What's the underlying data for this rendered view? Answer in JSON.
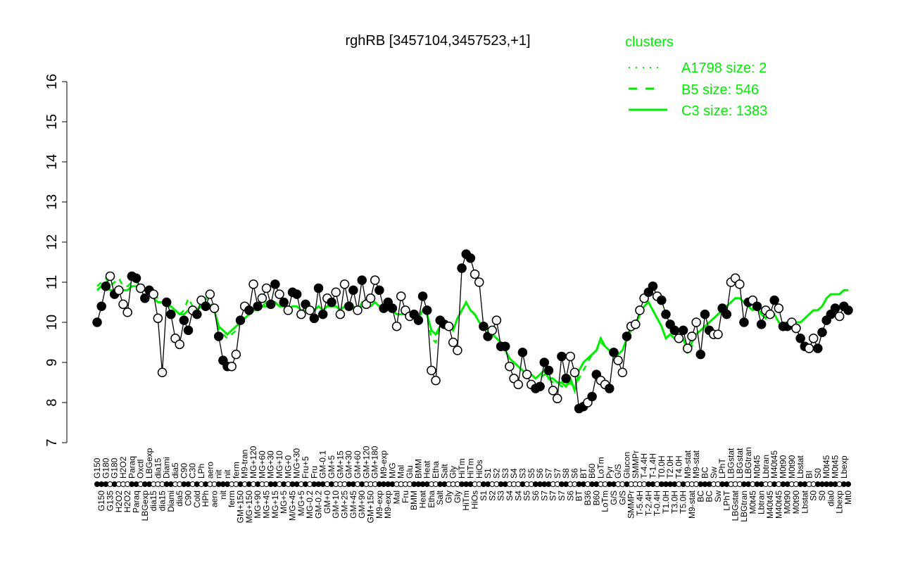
{
  "chart_data": {
    "type": "line",
    "title": "rghRB [3457104,3457523,+1]",
    "xlabel": "",
    "ylabel": "",
    "ylim": [
      7,
      16
    ],
    "yticks": [
      "7",
      "8",
      "9",
      "10",
      "11",
      "12",
      "13",
      "14",
      "15",
      "16"
    ],
    "grid": false,
    "legend": {
      "title": "clusters",
      "placement": "top-right",
      "entries": [
        {
          "name": "A1798 size: 2",
          "style": "dotted"
        },
        {
          "name": "B5 size: 546",
          "style": "dashed"
        },
        {
          "name": "C3 size: 1383",
          "style": "solid"
        }
      ]
    },
    "colors": {
      "cluster": "#00ee00",
      "points": "#000000"
    },
    "point_fields": [
      "label",
      "value",
      "filled",
      "C3",
      "B5"
    ],
    "points": [
      [
        "G150",
        10.0,
        1,
        10.8,
        10.9
      ],
      [
        "G150",
        10.4,
        1,
        10.9,
        11.0
      ],
      [
        "G180",
        10.9,
        1,
        10.9,
        11.1
      ],
      [
        "G135",
        11.15,
        0,
        10.8,
        10.9
      ],
      [
        "G180",
        10.7,
        1,
        10.8,
        11.0
      ],
      [
        "H2O2",
        10.8,
        0,
        10.9,
        11.1
      ],
      [
        "H2O2",
        10.45,
        0,
        10.8,
        10.9
      ],
      [
        "H2O2",
        10.25,
        0,
        10.8,
        10.9
      ],
      [
        "Paraq",
        11.15,
        1,
        10.9,
        11.0
      ],
      [
        "Paraq",
        11.1,
        1,
        10.9,
        11.0
      ],
      [
        "Oxctl",
        10.85,
        0,
        10.8,
        10.9
      ],
      [
        "LBGexp",
        10.6,
        1,
        10.8,
        10.8
      ],
      [
        "LBGexp",
        10.8,
        1,
        10.8,
        10.8
      ],
      [
        "dia15",
        10.7,
        0,
        10.6,
        10.7
      ],
      [
        "dia15",
        10.1,
        0,
        10.5,
        10.6
      ],
      [
        "dia15",
        8.75,
        0,
        10.5,
        10.5
      ],
      [
        "Diami",
        10.5,
        1,
        10.4,
        10.5
      ],
      [
        "Diami",
        10.2,
        1,
        10.4,
        10.4
      ],
      [
        "dia5",
        9.6,
        0,
        10.3,
        10.3
      ],
      [
        "dia5",
        9.45,
        0,
        10.2,
        10.2
      ],
      [
        "C90",
        10.05,
        1,
        10.2,
        10.3
      ],
      [
        "C90",
        9.8,
        1,
        10.3,
        10.6
      ],
      [
        "C30",
        10.3,
        0,
        10.3,
        10.4
      ],
      [
        "Cold",
        10.2,
        1,
        10.3,
        10.3
      ],
      [
        "LPh",
        10.55,
        0,
        10.4,
        10.5
      ],
      [
        "HPh",
        10.4,
        1,
        10.5,
        10.6
      ],
      [
        "aero",
        10.7,
        0,
        10.4,
        10.5
      ],
      [
        "aero",
        10.35,
        0,
        10.3,
        10.3
      ],
      [
        "nit",
        9.65,
        1,
        9.9,
        9.8
      ],
      [
        "nit",
        9.05,
        1,
        9.8,
        9.7
      ],
      [
        "nit",
        8.9,
        1,
        9.7,
        9.6
      ],
      [
        "ferm",
        8.9,
        0,
        9.8,
        9.7
      ],
      [
        "ferm",
        9.2,
        0,
        9.9,
        9.8
      ],
      [
        "GM+150",
        10.05,
        1,
        10.0,
        10.0
      ],
      [
        "M9-tran",
        10.4,
        0,
        10.1,
        10.1
      ],
      [
        "MG+150",
        10.3,
        1,
        10.2,
        10.2
      ],
      [
        "MG+120",
        10.95,
        0,
        10.3,
        10.3
      ],
      [
        "MG+90",
        10.4,
        1,
        10.3,
        10.4
      ],
      [
        "MG+60",
        10.6,
        0,
        10.4,
        10.4
      ],
      [
        "MG+45",
        10.85,
        0,
        10.4,
        10.5
      ],
      [
        "MG+30",
        10.45,
        1,
        10.4,
        10.4
      ],
      [
        "MG+15",
        10.95,
        1,
        10.5,
        10.5
      ],
      [
        "MG+10",
        10.7,
        0,
        10.4,
        10.4
      ],
      [
        "MG+5",
        10.5,
        1,
        10.4,
        10.5
      ],
      [
        "MG+0",
        10.3,
        0,
        10.3,
        10.3
      ],
      [
        "M/G+45",
        10.75,
        1,
        10.4,
        10.4
      ],
      [
        "M/G+30",
        10.7,
        1,
        10.4,
        10.4
      ],
      [
        "M/G+5",
        10.2,
        0,
        10.3,
        10.3
      ],
      [
        "Fru+5",
        10.45,
        1,
        10.3,
        10.3
      ],
      [
        "MG-0.2",
        10.3,
        0,
        10.3,
        10.3
      ],
      [
        "Fru",
        10.1,
        1,
        10.3,
        10.3
      ],
      [
        "GM-0.2",
        10.85,
        1,
        10.4,
        10.4
      ],
      [
        "GM-0.1",
        10.2,
        1,
        10.3,
        10.3
      ],
      [
        "GM+0",
        10.6,
        0,
        10.4,
        10.4
      ],
      [
        "GM+5",
        10.5,
        1,
        10.4,
        10.4
      ],
      [
        "GM+10",
        10.75,
        0,
        10.4,
        10.4
      ],
      [
        "GM+15",
        10.2,
        0,
        10.3,
        10.3
      ],
      [
        "GM+25",
        10.95,
        0,
        10.4,
        10.4
      ],
      [
        "GM+30",
        10.4,
        1,
        10.4,
        10.4
      ],
      [
        "GM+45",
        10.8,
        1,
        10.4,
        10.4
      ],
      [
        "GM+60",
        10.3,
        0,
        10.3,
        10.3
      ],
      [
        "GM+90",
        11.05,
        1,
        10.4,
        10.5
      ],
      [
        "GM+120",
        10.45,
        0,
        10.4,
        10.4
      ],
      [
        "GM+150",
        10.6,
        0,
        10.4,
        10.4
      ],
      [
        "GM+180",
        11.05,
        0,
        10.5,
        10.5
      ],
      [
        "M9-exp",
        10.8,
        1,
        10.4,
        10.4
      ],
      [
        "M9-exp",
        10.35,
        1,
        10.3,
        10.3
      ],
      [
        "M9-exp",
        10.5,
        1,
        10.3,
        10.3
      ],
      [
        "M/G",
        10.35,
        1,
        10.3,
        10.3
      ],
      [
        "Mal",
        9.9,
        0,
        10.2,
        10.2
      ],
      [
        "Mal",
        10.65,
        0,
        10.2,
        10.2
      ],
      [
        "Fru",
        10.3,
        0,
        10.2,
        10.2
      ],
      [
        "Glu",
        10.15,
        0,
        10.2,
        10.2
      ],
      [
        "BMM",
        10.2,
        1,
        10.2,
        10.2
      ],
      [
        "BMM",
        10.05,
        1,
        10.1,
        10.1
      ],
      [
        "Heat",
        10.65,
        1,
        10.3,
        10.3
      ],
      [
        "Heat",
        10.3,
        1,
        10.2,
        10.2
      ],
      [
        "Etha",
        8.8,
        0,
        9.8,
        9.6
      ],
      [
        "Etha",
        8.55,
        0,
        9.7,
        9.5
      ],
      [
        "Salt",
        10.05,
        1,
        9.9,
        9.9
      ],
      [
        "Salt",
        9.95,
        1,
        10.0,
        10.0
      ],
      [
        "Gly",
        9.9,
        0,
        9.9,
        9.9
      ],
      [
        "Gly",
        9.5,
        0,
        9.8,
        9.8
      ],
      [
        "Gly",
        9.3,
        0,
        10.1,
        10.1
      ],
      [
        "HiTm",
        11.35,
        1,
        10.3,
        10.3
      ],
      [
        "HiTm",
        11.7,
        1,
        10.5,
        10.5
      ],
      [
        "HiTm",
        11.6,
        1,
        10.3,
        10.3
      ],
      [
        "HiOs",
        11.2,
        0,
        10.2,
        10.2
      ],
      [
        "HiOs",
        11.0,
        0,
        10.0,
        10.0
      ],
      [
        "S1",
        9.9,
        1,
        9.9,
        9.9
      ],
      [
        "S1",
        9.65,
        1,
        9.8,
        9.8
      ],
      [
        "S2",
        9.8,
        0,
        9.7,
        9.7
      ],
      [
        "S2",
        10.05,
        0,
        9.6,
        9.6
      ],
      [
        "S3",
        9.4,
        1,
        9.5,
        9.5
      ],
      [
        "S3",
        9.4,
        1,
        9.3,
        9.3
      ],
      [
        "S4",
        8.9,
        0,
        9.1,
        9.1
      ],
      [
        "S4",
        8.6,
        0,
        9.0,
        9.0
      ],
      [
        "S4",
        8.45,
        0,
        8.9,
        8.9
      ],
      [
        "S3",
        9.25,
        1,
        8.8,
        8.8
      ],
      [
        "S5",
        8.7,
        0,
        8.7,
        8.7
      ],
      [
        "S5",
        8.45,
        0,
        8.7,
        8.7
      ],
      [
        "S6",
        8.35,
        1,
        8.6,
        8.6
      ],
      [
        "S6",
        8.4,
        1,
        8.7,
        8.6
      ],
      [
        "S7",
        9.0,
        1,
        8.8,
        8.7
      ],
      [
        "S7",
        8.8,
        1,
        8.6,
        8.6
      ],
      [
        "S7",
        8.3,
        0,
        8.6,
        8.5
      ],
      [
        "S7",
        8.1,
        0,
        8.5,
        8.5
      ],
      [
        "S7",
        9.15,
        1,
        8.5,
        8.4
      ],
      [
        "S8",
        8.6,
        1,
        8.4,
        8.4
      ],
      [
        "S6",
        9.15,
        0,
        8.6,
        8.5
      ],
      [
        "S6",
        8.75,
        0,
        8.3,
        8.3
      ],
      [
        "BT",
        7.85,
        1,
        8.8,
        8.6
      ],
      [
        "BT",
        7.9,
        1,
        9.0,
        8.8
      ],
      [
        "B36",
        8.0,
        0,
        9.1,
        9.0
      ],
      [
        "B60",
        8.15,
        1,
        9.2,
        9.2
      ],
      [
        "B60",
        8.7,
        1,
        9.3,
        9.3
      ],
      [
        "LoTm",
        8.55,
        0,
        9.6,
        9.5
      ],
      [
        "LoTm",
        8.45,
        0,
        9.4,
        9.4
      ],
      [
        "Pyr",
        8.35,
        1,
        9.3,
        9.3
      ],
      [
        "G/S",
        9.25,
        1,
        9.3,
        9.3
      ],
      [
        "G/S",
        9.05,
        0,
        9.2,
        9.2
      ],
      [
        "G/S",
        8.75,
        0,
        9.3,
        9.3
      ],
      [
        "Glucon",
        9.65,
        1,
        9.6,
        9.6
      ],
      [
        "SMMPr",
        9.9,
        0,
        9.8,
        9.8
      ],
      [
        "SMMPr",
        9.95,
        0,
        9.9,
        9.9
      ],
      [
        "T-5.4H",
        10.3,
        0,
        10.2,
        10.2
      ],
      [
        "T-4.4H",
        10.6,
        0,
        10.4,
        10.4
      ],
      [
        "T-2.4H",
        10.75,
        1,
        10.5,
        10.5
      ],
      [
        "T-1.4H",
        10.9,
        1,
        10.3,
        10.3
      ],
      [
        "T-0.4H",
        10.65,
        0,
        10.1,
        10.1
      ],
      [
        "T0.0H",
        10.55,
        1,
        9.9,
        9.9
      ],
      [
        "T1.0H",
        10.2,
        1,
        9.6,
        9.6
      ],
      [
        "T2.0H",
        9.95,
        1,
        9.7,
        9.7
      ],
      [
        "T3.0H",
        9.8,
        1,
        9.6,
        9.6
      ],
      [
        "T4.0H",
        9.6,
        0,
        9.7,
        9.7
      ],
      [
        "T5.0H",
        9.8,
        1,
        9.6,
        9.6
      ],
      [
        "M9-stat",
        9.35,
        0,
        9.3,
        9.2
      ],
      [
        "M9-stat",
        9.65,
        0,
        9.5,
        9.4
      ],
      [
        "M9-stat",
        10.0,
        0,
        9.7,
        9.7
      ],
      [
        "BC",
        9.2,
        1,
        9.8,
        9.8
      ],
      [
        "BC",
        10.2,
        1,
        9.9,
        9.9
      ],
      [
        "BC",
        9.8,
        1,
        10.0,
        10.0
      ],
      [
        "Sw",
        9.7,
        0,
        10.1,
        10.1
      ],
      [
        "Sw",
        9.7,
        0,
        10.2,
        10.2
      ],
      [
        "LPhT",
        10.35,
        1,
        10.3,
        10.3
      ],
      [
        "LPhT",
        10.2,
        1,
        10.4,
        10.4
      ],
      [
        "LBGstat",
        11.0,
        0,
        10.5,
        10.5
      ],
      [
        "LBGstat",
        11.1,
        0,
        10.6,
        10.6
      ],
      [
        "LBGstat",
        10.95,
        0,
        10.6,
        10.6
      ],
      [
        "LBGtran",
        10.0,
        1,
        10.5,
        10.5
      ],
      [
        "LBGtran",
        10.5,
        1,
        10.4,
        10.4
      ],
      [
        "M0t45",
        10.55,
        0,
        10.3,
        10.3
      ],
      [
        "M0t45",
        10.4,
        1,
        10.4,
        10.4
      ],
      [
        "Lbtran",
        9.95,
        1,
        10.2,
        10.2
      ],
      [
        "Lbtran",
        10.3,
        0,
        10.1,
        10.1
      ],
      [
        "M40t45",
        10.2,
        0,
        10.3,
        10.3
      ],
      [
        "M40t45",
        10.55,
        1,
        10.2,
        10.2
      ],
      [
        "M40t45",
        10.35,
        0,
        10.0,
        10.0
      ],
      [
        "M0t90",
        9.9,
        1,
        9.9,
        9.9
      ],
      [
        "M0t90",
        9.9,
        1,
        10.0,
        10.0
      ],
      [
        "M0t90",
        10.0,
        0,
        10.0,
        10.0
      ],
      [
        "M0t90",
        9.85,
        0,
        10.0,
        10.0
      ],
      [
        "Lbstat",
        9.6,
        1,
        10.0,
        10.0
      ],
      [
        "Lbstat",
        9.4,
        1,
        10.1,
        10.1
      ],
      [
        "BI",
        9.35,
        0,
        10.2,
        10.2
      ],
      [
        "S0",
        9.6,
        0,
        10.3,
        10.3
      ],
      [
        "S0",
        9.35,
        1,
        10.3,
        10.3
      ],
      [
        "S0",
        9.75,
        1,
        10.4,
        10.4
      ],
      [
        "M0t45",
        10.05,
        1,
        10.6,
        10.6
      ],
      [
        "dia0",
        10.2,
        1,
        10.7,
        10.7
      ],
      [
        "M0t45",
        10.35,
        1,
        10.7,
        10.7
      ],
      [
        "Lbexp",
        10.15,
        0,
        10.7,
        10.7
      ],
      [
        "Lbexp",
        10.4,
        1,
        10.8,
        10.8
      ],
      [
        "Mt0",
        10.3,
        1,
        10.8,
        10.8
      ]
    ]
  }
}
